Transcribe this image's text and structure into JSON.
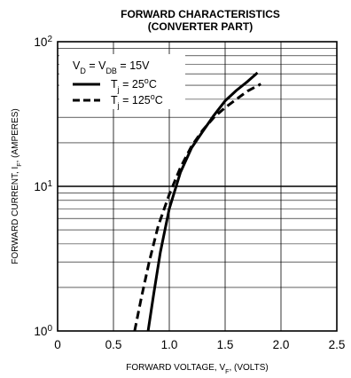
{
  "chart_data": {
    "type": "line",
    "title_line1": "FORWARD CHARACTERISTICS",
    "title_line2": "(CONVERTER PART)",
    "xlabel": {
      "prefix": "FORWARD VOLTAGE, V",
      "sub": "F",
      "suffix": ", (VOLTS)"
    },
    "ylabel": {
      "prefix": "FORWARD CURRENT, I",
      "sub": "F",
      "suffix": ", (AMPERES)"
    },
    "xlim": [
      0,
      2.5
    ],
    "ylim": [
      1,
      100
    ],
    "yscale": "log",
    "grid": true,
    "legend_position": "top-left",
    "x_ticks": [
      {
        "value": 0,
        "label": "0"
      },
      {
        "value": 0.5,
        "label": "0.5"
      },
      {
        "value": 1.0,
        "label": "1.0"
      },
      {
        "value": 1.5,
        "label": "1.5"
      },
      {
        "value": 2.0,
        "label": "2.0"
      },
      {
        "value": 2.5,
        "label": "2.5"
      }
    ],
    "y_ticks": [
      {
        "value": 1,
        "base": "10",
        "exp": "0"
      },
      {
        "value": 10,
        "base": "10",
        "exp": "1"
      },
      {
        "value": 100,
        "base": "10",
        "exp": "2"
      }
    ],
    "condition": {
      "a": "V",
      "a_sub": "D",
      "eq1": " = V",
      "b_sub": "DB",
      "eq2": " = 15V"
    },
    "series": [
      {
        "label": {
          "pre": "T",
          "sub": "j",
          "mid": " = 25",
          "sup": "o",
          "post": "C"
        },
        "style": "solid",
        "points": [
          [
            0.81,
            1.0
          ],
          [
            0.86,
            1.8
          ],
          [
            0.92,
            3.5
          ],
          [
            1.0,
            7.0
          ],
          [
            1.1,
            12.5
          ],
          [
            1.2,
            18.5
          ],
          [
            1.3,
            24.0
          ],
          [
            1.4,
            31.0
          ],
          [
            1.5,
            39.0
          ],
          [
            1.6,
            46.0
          ],
          [
            1.7,
            53.0
          ],
          [
            1.79,
            61.0
          ]
        ]
      },
      {
        "label": {
          "pre": "T",
          "sub": "j",
          "mid": " = 125",
          "sup": "o",
          "post": "C"
        },
        "style": "dashed",
        "points": [
          [
            0.69,
            1.0
          ],
          [
            0.75,
            1.7
          ],
          [
            0.82,
            3.0
          ],
          [
            0.9,
            5.3
          ],
          [
            1.0,
            8.8
          ],
          [
            1.1,
            13.5
          ],
          [
            1.2,
            19.0
          ],
          [
            1.3,
            24.5
          ],
          [
            1.4,
            30.0
          ],
          [
            1.5,
            35.0
          ],
          [
            1.6,
            40.0
          ],
          [
            1.7,
            45.5
          ],
          [
            1.82,
            51.0
          ]
        ]
      }
    ]
  }
}
